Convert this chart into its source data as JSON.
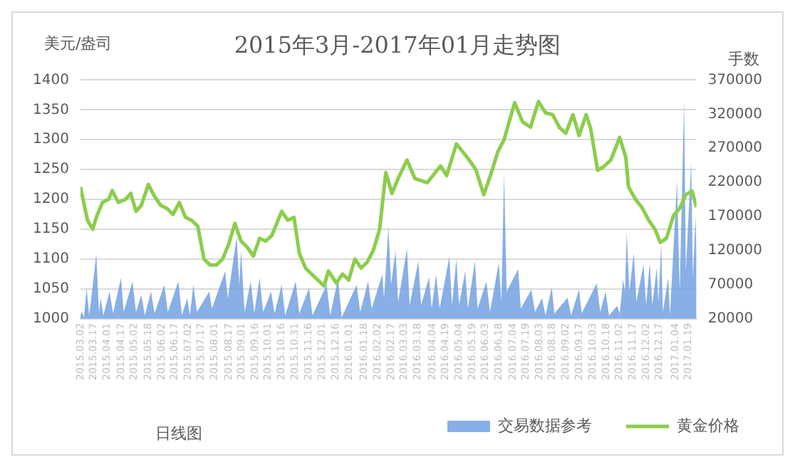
{
  "chart_data": {
    "type": "line",
    "title": "2015年3月-2017年01月走势图",
    "ylabel": "美元/盎司",
    "y2label": "手数",
    "annotations": [
      "日线图"
    ],
    "xlim": [
      "2015-03-02",
      "2017-01-28"
    ],
    "xticks": [
      {
        "value": "2015-03-02",
        "label": "2015.03.02"
      },
      {
        "value": "2015-03-17",
        "label": "2015.03.17"
      },
      {
        "value": "2015-04-01",
        "label": "2015.04.01"
      },
      {
        "value": "2015-04-17",
        "label": "2015.04.17"
      },
      {
        "value": "2015-05-02",
        "label": "2015.05.02"
      },
      {
        "value": "2015-05-18",
        "label": "2015.05.18"
      },
      {
        "value": "2015-06-02",
        "label": "2015.06.02"
      },
      {
        "value": "2015-06-17",
        "label": "2015.06.17"
      },
      {
        "value": "2015-07-02",
        "label": "2015.07.02"
      },
      {
        "value": "2015-07-17",
        "label": "2015.07.17"
      },
      {
        "value": "2015-08-01",
        "label": "2015.08.01"
      },
      {
        "value": "2015-08-17",
        "label": "2015.08.17"
      },
      {
        "value": "2015-09-01",
        "label": "2015.09.01"
      },
      {
        "value": "2015-09-16",
        "label": "2015.09.16"
      },
      {
        "value": "2015-10-01",
        "label": "2015.10.01"
      },
      {
        "value": "2015-10-16",
        "label": "2015.10.16"
      },
      {
        "value": "2015-10-31",
        "label": "2015.10.31"
      },
      {
        "value": "2015-11-16",
        "label": "2015.11.16"
      },
      {
        "value": "2015-12-01",
        "label": "2015.12.01"
      },
      {
        "value": "2015-12-16",
        "label": "2015.12.16"
      },
      {
        "value": "2016-01-01",
        "label": "2016.01.01"
      },
      {
        "value": "2016-01-18",
        "label": "2016.01.18"
      },
      {
        "value": "2016-02-02",
        "label": "2016.02.02"
      },
      {
        "value": "2016-02-17",
        "label": "2016.02.17"
      },
      {
        "value": "2016-03-03",
        "label": "2016.03.03"
      },
      {
        "value": "2016-03-18",
        "label": "2016.03.18"
      },
      {
        "value": "2016-04-04",
        "label": "2016.04.04"
      },
      {
        "value": "2016-04-19",
        "label": "2016.04.19"
      },
      {
        "value": "2016-05-04",
        "label": "2016.05.04"
      },
      {
        "value": "2016-05-19",
        "label": "2016.05.19"
      },
      {
        "value": "2016-06-03",
        "label": "2016.06.03"
      },
      {
        "value": "2016-06-18",
        "label": "2016.06.18"
      },
      {
        "value": "2016-07-04",
        "label": "2016.07.04"
      },
      {
        "value": "2016-07-19",
        "label": "2016.07.19"
      },
      {
        "value": "2016-08-03",
        "label": "2016.08.03"
      },
      {
        "value": "2016-08-18",
        "label": "2016.08.18"
      },
      {
        "value": "2016-09-02",
        "label": "2016.09.02"
      },
      {
        "value": "2016-09-17",
        "label": "2016.09.17"
      },
      {
        "value": "2016-10-03",
        "label": "2016.10.03"
      },
      {
        "value": "2016-10-18",
        "label": "2016.10.18"
      },
      {
        "value": "2016-11-02",
        "label": "2016.11.02"
      },
      {
        "value": "2016-11-17",
        "label": "2016.11.17"
      },
      {
        "value": "2016-12-02",
        "label": "2016.12.02"
      },
      {
        "value": "2016-12-17",
        "label": "2016.12.17"
      },
      {
        "value": "2017-01-04",
        "label": "2017.01.04"
      },
      {
        "value": "2017-01-19",
        "label": "2017.01.19"
      }
    ],
    "ylim": [
      1000,
      1400
    ],
    "yticks": [
      1000,
      1050,
      1100,
      1150,
      1200,
      1250,
      1300,
      1350,
      1400
    ],
    "y2lim": [
      20000,
      370000
    ],
    "y2ticks": [
      20000,
      70000,
      120000,
      170000,
      220000,
      270000,
      320000,
      370000
    ],
    "grid": "y",
    "legend": "bottom",
    "series": [
      {
        "name": "交易数据参考",
        "type": "area",
        "axis": "y2",
        "color": "#6a9be0",
        "x": [
          "2015-03-02",
          "2015-03-04",
          "2015-03-06",
          "2015-03-09",
          "2015-03-12",
          "2015-03-20",
          "2015-03-23",
          "2015-03-25",
          "2015-03-28",
          "2015-04-04",
          "2015-04-08",
          "2015-04-17",
          "2015-04-20",
          "2015-04-30",
          "2015-05-04",
          "2015-05-10",
          "2015-05-14",
          "2015-05-21",
          "2015-05-25",
          "2015-06-05",
          "2015-06-09",
          "2015-06-21",
          "2015-06-25",
          "2015-07-01",
          "2015-07-04",
          "2015-07-08",
          "2015-07-12",
          "2015-07-26",
          "2015-07-29",
          "2015-08-13",
          "2015-08-16",
          "2015-08-26",
          "2015-08-29",
          "2015-08-31",
          "2015-09-04",
          "2015-09-11",
          "2015-09-15",
          "2015-09-21",
          "2015-09-25",
          "2015-10-04",
          "2015-10-08",
          "2015-10-16",
          "2015-10-20",
          "2015-11-01",
          "2015-11-05",
          "2015-11-16",
          "2015-11-20",
          "2015-12-06",
          "2015-12-10",
          "2015-12-19",
          "2015-12-23",
          "2016-01-09",
          "2016-01-13",
          "2016-01-22",
          "2016-01-26",
          "2016-02-07",
          "2016-02-09",
          "2016-02-14",
          "2016-02-17",
          "2016-02-22",
          "2016-02-25",
          "2016-03-06",
          "2016-03-09",
          "2016-03-19",
          "2016-03-22",
          "2016-03-31",
          "2016-04-03",
          "2016-04-08",
          "2016-04-12",
          "2016-04-23",
          "2016-04-26",
          "2016-05-01",
          "2016-05-04",
          "2016-05-11",
          "2016-05-14",
          "2016-05-22",
          "2016-05-25",
          "2016-06-04",
          "2016-06-08",
          "2016-06-18",
          "2016-06-21",
          "2016-06-24",
          "2016-06-27",
          "2016-07-10",
          "2016-07-13",
          "2016-07-25",
          "2016-07-29",
          "2016-08-06",
          "2016-08-10",
          "2016-08-17",
          "2016-08-20",
          "2016-09-04",
          "2016-09-08",
          "2016-09-17",
          "2016-09-20",
          "2016-10-07",
          "2016-10-11",
          "2016-10-17",
          "2016-10-21",
          "2016-10-30",
          "2016-11-02",
          "2016-11-06",
          "2016-11-08",
          "2016-11-10",
          "2016-11-13",
          "2016-11-18",
          "2016-11-21",
          "2016-11-29",
          "2016-12-02",
          "2016-12-06",
          "2016-12-09",
          "2016-12-14",
          "2016-12-16",
          "2016-12-19",
          "2016-12-21",
          "2016-12-27",
          "2016-12-29",
          "2017-01-06",
          "2017-01-09",
          "2017-01-14",
          "2017-01-16",
          "2017-01-22",
          "2017-01-24",
          "2017-01-27",
          "2017-01-28"
        ],
        "values": [
          25000,
          30000,
          22000,
          65000,
          25000,
          115000,
          30000,
          50000,
          25000,
          60000,
          28000,
          80000,
          30000,
          75000,
          30000,
          55000,
          25000,
          60000,
          28000,
          70000,
          30000,
          75000,
          25000,
          50000,
          25000,
          70000,
          30000,
          60000,
          35000,
          90000,
          50000,
          140000,
          70000,
          120000,
          30000,
          75000,
          28000,
          80000,
          30000,
          60000,
          28000,
          70000,
          25000,
          75000,
          28000,
          65000,
          25000,
          70000,
          25000,
          80000,
          22000,
          70000,
          30000,
          75000,
          35000,
          85000,
          50000,
          155000,
          70000,
          120000,
          45000,
          123000,
          40000,
          105000,
          40000,
          81000,
          35000,
          85000,
          35000,
          111000,
          40000,
          108000,
          40000,
          90000,
          35000,
          105000,
          35000,
          75000,
          30000,
          102000,
          45000,
          234000,
          60000,
          93000,
          35000,
          63000,
          30000,
          50000,
          25000,
          66000,
          28000,
          51000,
          25000,
          63000,
          28000,
          72000,
          30000,
          60000,
          25000,
          39000,
          28000,
          78000,
          60000,
          147000,
          60000,
          117000,
          45000,
          100000,
          40000,
          102000,
          40000,
          95000,
          45000,
          129000,
          30000,
          80000,
          25000,
          222000,
          60000,
          340000,
          90000,
          250000,
          80000,
          171000,
          117000
        ]
      },
      {
        "name": "黄金价格",
        "axis": "y",
        "color": "#8ccd4c",
        "x": [
          "2015-03-02",
          "2015-03-05",
          "2015-03-10",
          "2015-03-16",
          "2015-03-20",
          "2015-03-27",
          "2015-04-03",
          "2015-04-07",
          "2015-04-14",
          "2015-04-22",
          "2015-04-28",
          "2015-05-04",
          "2015-05-10",
          "2015-05-18",
          "2015-05-25",
          "2015-06-01",
          "2015-06-08",
          "2015-06-15",
          "2015-06-22",
          "2015-06-29",
          "2015-07-06",
          "2015-07-13",
          "2015-07-20",
          "2015-07-27",
          "2015-08-03",
          "2015-08-10",
          "2015-08-17",
          "2015-08-24",
          "2015-08-31",
          "2015-09-07",
          "2015-09-14",
          "2015-09-21",
          "2015-09-28",
          "2015-10-05",
          "2015-10-16",
          "2015-10-23",
          "2015-10-30",
          "2015-11-05",
          "2015-11-12",
          "2015-11-19",
          "2015-11-26",
          "2015-12-03",
          "2015-12-08",
          "2015-12-17",
          "2015-12-24",
          "2015-12-31",
          "2016-01-07",
          "2016-01-14",
          "2016-01-21",
          "2016-01-28",
          "2016-02-04",
          "2016-02-11",
          "2016-02-18",
          "2016-02-25",
          "2016-03-06",
          "2016-03-15",
          "2016-03-29",
          "2016-04-13",
          "2016-04-20",
          "2016-05-01",
          "2016-05-14",
          "2016-05-23",
          "2016-06-01",
          "2016-06-09",
          "2016-06-17",
          "2016-06-24",
          "2016-07-06",
          "2016-07-15",
          "2016-07-24",
          "2016-08-02",
          "2016-08-10",
          "2016-08-18",
          "2016-08-26",
          "2016-09-02",
          "2016-09-10",
          "2016-09-17",
          "2016-09-25",
          "2016-09-30",
          "2016-10-08",
          "2016-10-15",
          "2016-10-23",
          "2016-11-02",
          "2016-11-09",
          "2016-11-12",
          "2016-11-20",
          "2016-11-27",
          "2016-12-05",
          "2016-12-12",
          "2016-12-18",
          "2016-12-25",
          "2017-01-02",
          "2017-01-09",
          "2017-01-16",
          "2017-01-23",
          "2017-01-28"
        ],
        "values": [
          1221,
          1200,
          1165,
          1150,
          1170,
          1195,
          1200,
          1215,
          1195,
          1200,
          1210,
          1180,
          1190,
          1225,
          1205,
          1190,
          1185,
          1175,
          1195,
          1170,
          1165,
          1155,
          1100,
          1090,
          1090,
          1100,
          1125,
          1160,
          1130,
          1120,
          1105,
          1135,
          1130,
          1140,
          1180,
          1165,
          1170,
          1110,
          1085,
          1075,
          1065,
          1055,
          1080,
          1060,
          1075,
          1065,
          1100,
          1085,
          1095,
          1115,
          1150,
          1245,
          1210,
          1235,
          1266,
          1235,
          1228,
          1256,
          1240,
          1293,
          1269,
          1250,
          1208,
          1242,
          1280,
          1300,
          1362,
          1330,
          1321,
          1364,
          1345,
          1342,
          1320,
          1311,
          1342,
          1307,
          1342,
          1320,
          1249,
          1255,
          1266,
          1304,
          1270,
          1221,
          1200,
          1187,
          1165,
          1150,
          1128,
          1135,
          1173,
          1185,
          1208,
          1214,
          1187
        ]
      }
    ]
  }
}
